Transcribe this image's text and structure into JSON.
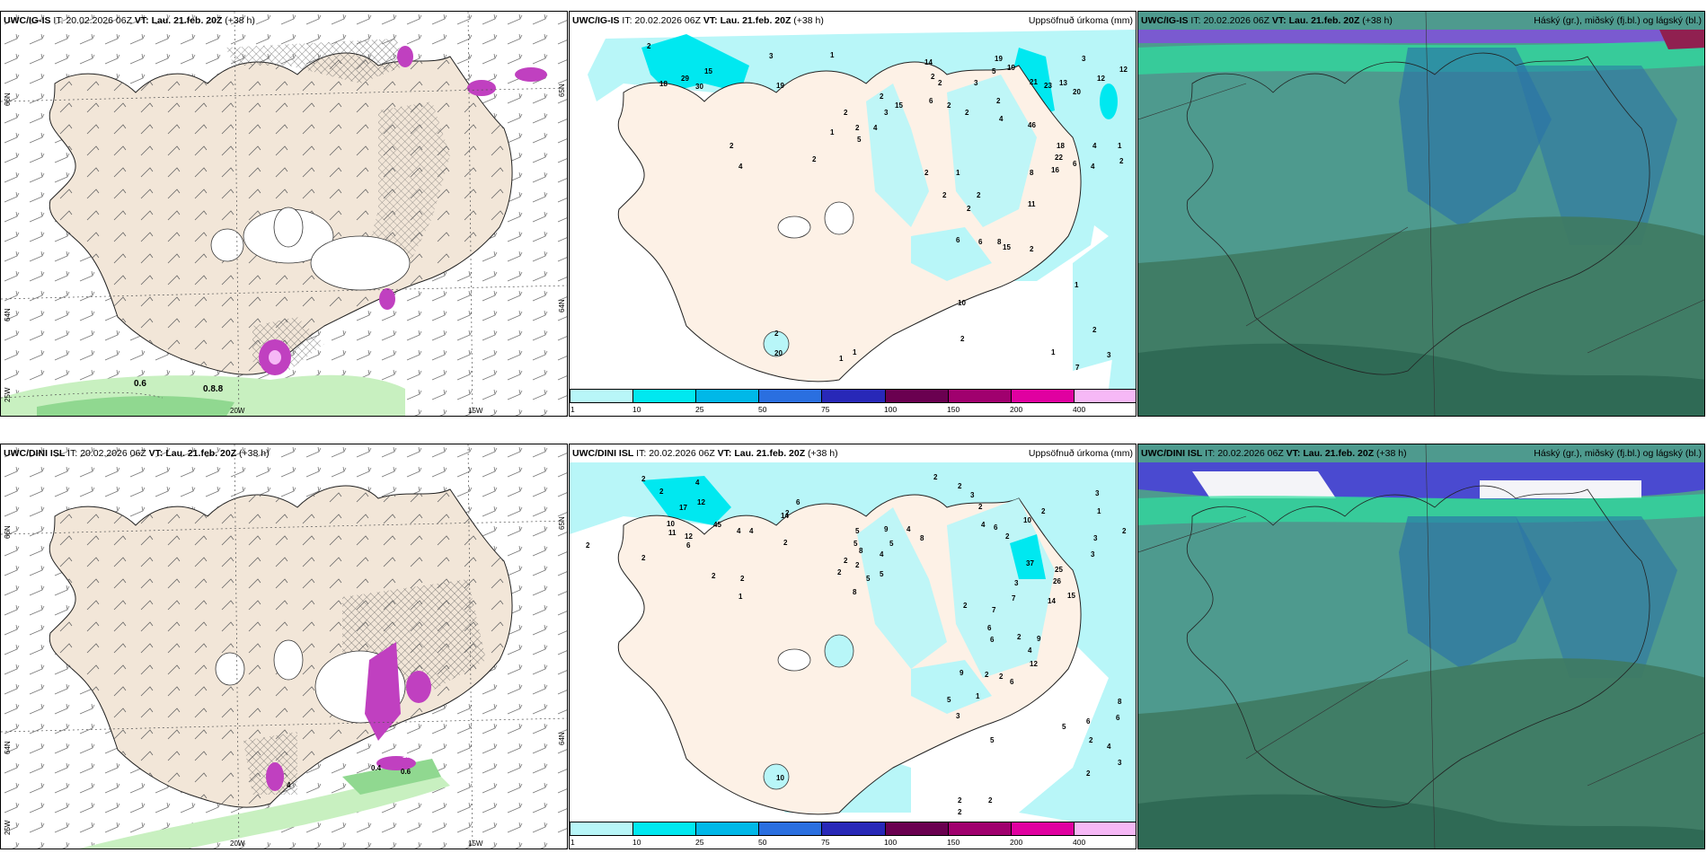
{
  "panels": [
    {
      "id": "p1",
      "model": "UWC/IG-IS",
      "it_prefix": "IT:",
      "it_value": "20.02.2026 06Z",
      "vt_prefix": "VT:",
      "vt_value": "Lau. 21.feb. 20Z",
      "lead": "(+38 h)",
      "right_title": "",
      "lat_labels": [
        "66N",
        "64N",
        "25W"
      ],
      "lat_labels_right": [
        "65N",
        "64N"
      ],
      "lon_labels": [
        "20W",
        "15W"
      ],
      "values": [
        "0.6",
        "0.8.8"
      ]
    },
    {
      "id": "p2",
      "model": "UWC/IG-IS",
      "it_prefix": "IT:",
      "it_value": "20.02.2026 06Z",
      "vt_prefix": "VT:",
      "vt_value": "Lau. 21.feb. 20Z",
      "lead": "(+38 h)",
      "right_title": "Uppsöfnuð úrkoma (mm)",
      "numbers": [
        "2",
        "3",
        "1",
        "19",
        "29",
        "30",
        "15",
        "18",
        "2",
        "2",
        "1",
        "2",
        "2",
        "4",
        "5",
        "2",
        "4",
        "3",
        "15",
        "14",
        "2",
        "6",
        "2",
        "2",
        "3",
        "2",
        "2",
        "4",
        "5",
        "19",
        "19",
        "21",
        "23",
        "13",
        "20",
        "3",
        "12",
        "12",
        "46",
        "18",
        "22",
        "16",
        "4",
        "1",
        "4",
        "6",
        "8",
        "2",
        "2",
        "1",
        "2",
        "2",
        "2",
        "11",
        "6",
        "6",
        "8",
        "15",
        "2",
        "10",
        "1",
        "2",
        "2",
        "20",
        "1",
        "1",
        "1",
        "7",
        "2",
        "3"
      ]
    },
    {
      "id": "p3",
      "model": "UWC/IG-IS",
      "it_prefix": "IT:",
      "it_value": "20.02.2026 06Z",
      "vt_prefix": "VT:",
      "vt_value": "Lau. 21.feb. 20Z",
      "lead": "(+38 h)",
      "right_title": "Háský (gr.), miðský (fj.bl.) og lágský (bl.)"
    },
    {
      "id": "p4",
      "model": "UWC/DINI ISL",
      "it_prefix": "IT:",
      "it_value": "20.02.2026 06Z",
      "vt_prefix": "VT:",
      "vt_value": "Lau. 21.feb. 20Z",
      "lead": "(+38 h)",
      "right_title": "",
      "lat_labels": [
        "66N",
        "64N",
        "25W"
      ],
      "lat_labels_right": [
        "65N",
        "64N"
      ],
      "lon_labels": [
        "20W",
        "15W"
      ],
      "values": [
        "4",
        "0.4",
        "1.0",
        "0.6"
      ]
    },
    {
      "id": "p5",
      "model": "UWC/DINI ISL",
      "it_prefix": "IT:",
      "it_value": "20.02.2026 06Z",
      "vt_prefix": "VT:",
      "vt_value": "Lau. 21.feb. 20Z",
      "lead": "(+38 h)",
      "right_title": "Uppsöfnuð úrkoma (mm)",
      "numbers": [
        "2",
        "4",
        "2",
        "14",
        "17",
        "12",
        "45",
        "10",
        "11",
        "12",
        "6",
        "2",
        "2",
        "2",
        "4",
        "6",
        "2",
        "4",
        "5",
        "5",
        "8",
        "9",
        "2",
        "2",
        "4",
        "4",
        "8",
        "5",
        "2",
        "5",
        "5",
        "2",
        "2",
        "8",
        "1",
        "2",
        "2",
        "3",
        "2",
        "4",
        "6",
        "10",
        "2",
        "2",
        "37",
        "25",
        "26",
        "14",
        "15",
        "3",
        "1",
        "2",
        "3",
        "3",
        "3",
        "7",
        "7",
        "6",
        "6",
        "2",
        "2",
        "4",
        "9",
        "12",
        "9",
        "2",
        "2",
        "6",
        "1",
        "5",
        "3",
        "8",
        "5",
        "6",
        "6",
        "2",
        "4",
        "3",
        "2",
        "5",
        "10",
        "2",
        "2",
        "2"
      ]
    },
    {
      "id": "p6",
      "model": "UWC/DINI ISL",
      "it_prefix": "IT:",
      "it_value": "20.02.2026 06Z",
      "vt_prefix": "VT:",
      "vt_value": "Lau. 21.feb. 20Z",
      "lead": "(+38 h)",
      "right_title": "Háský (gr.), miðský (fj.bl.) og lágský (bl.)"
    }
  ],
  "colorbar": {
    "labels": [
      "1",
      "10",
      "25",
      "50",
      "75",
      "100",
      "150",
      "200",
      "400"
    ],
    "colors": [
      "#b8f6f8",
      "#00e8f0",
      "#00b8e8",
      "#2a6fe0",
      "#2828b8",
      "#6a0050",
      "#a0006e",
      "#e000a0",
      "#f6b8f6"
    ]
  },
  "colors": {
    "land": "#f2e6d8",
    "land_precip": "#fdf1e6",
    "sea_light": "#b8f6f8",
    "green1": "#c8f0c0",
    "green2": "#90d890",
    "purple": "#c040c0",
    "cloud_teal": "#4e9a8e",
    "cloud_dark": "#3f7a62",
    "cloud_blue": "#2a72a8"
  }
}
